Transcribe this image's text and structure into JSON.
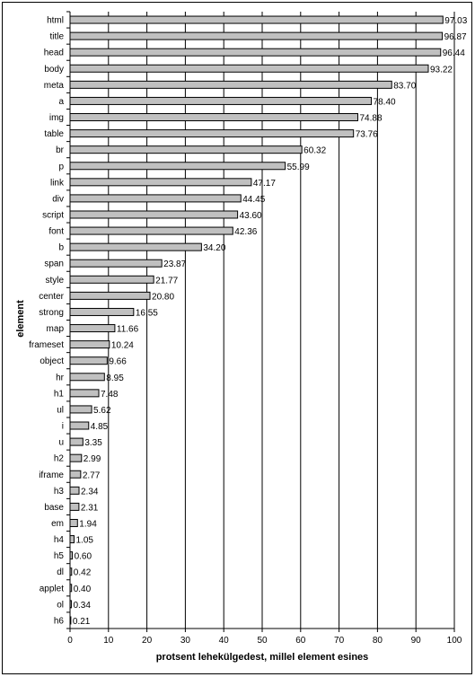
{
  "chart_data": {
    "type": "bar",
    "orientation": "horizontal",
    "xlabel": "protsent lehekülgedest, millel element esines",
    "ylabel": "element",
    "xlim": [
      0,
      100
    ],
    "xticks": [
      0,
      10,
      20,
      30,
      40,
      50,
      60,
      70,
      80,
      90,
      100
    ],
    "grid": "vertical",
    "categories": [
      "html",
      "title",
      "head",
      "body",
      "meta",
      "a",
      "img",
      "table",
      "br",
      "p",
      "link",
      "div",
      "script",
      "font",
      "b",
      "span",
      "style",
      "center",
      "strong",
      "map",
      "frameset",
      "object",
      "hr",
      "h1",
      "ul",
      "i",
      "u",
      "h2",
      "iframe",
      "h3",
      "base",
      "em",
      "h4",
      "h5",
      "dl",
      "applet",
      "ol",
      "h6"
    ],
    "values": [
      97.03,
      96.87,
      96.44,
      93.22,
      83.7,
      78.4,
      74.88,
      73.76,
      60.32,
      55.99,
      47.17,
      44.45,
      43.6,
      42.36,
      34.2,
      23.87,
      21.77,
      20.8,
      16.55,
      11.66,
      10.24,
      9.66,
      8.95,
      7.48,
      5.62,
      4.85,
      3.35,
      2.99,
      2.77,
      2.34,
      2.31,
      1.94,
      1.05,
      0.6,
      0.42,
      0.4,
      0.34,
      0.21
    ],
    "value_labels": [
      "97.03",
      "96.87",
      "96.44",
      "93.22",
      "83.70",
      "78.40",
      "74.88",
      "73.76",
      "60.32",
      "55.99",
      "47.17",
      "44.45",
      "43.60",
      "42.36",
      "34.20",
      "23.87",
      "21.77",
      "20.80",
      "16.55",
      "11.66",
      "10.24",
      "9.66",
      "8.95",
      "7.48",
      "5.62",
      "4.85",
      "3.35",
      "2.99",
      "2.77",
      "2.34",
      "2.31",
      "1.94",
      "1.05",
      "0.60",
      "0.42",
      "0.40",
      "0.34",
      "0.21"
    ],
    "bar_color": "#c0c0c0",
    "bar_stroke": "#000000"
  }
}
